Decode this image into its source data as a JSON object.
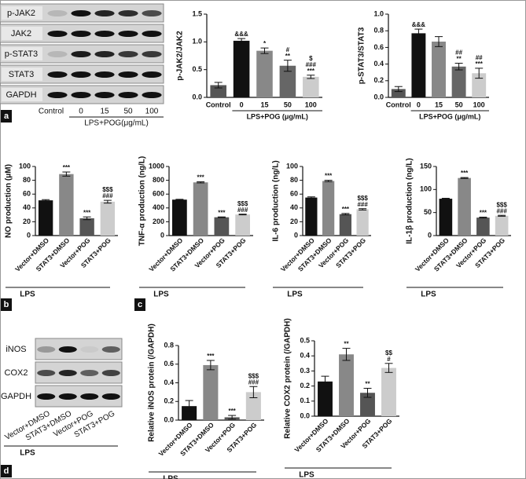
{
  "panels": [
    "a",
    "b",
    "c",
    "d"
  ],
  "blots": [
    {
      "rows": [
        "p-JAK2",
        "JAK2",
        "p-STAT3",
        "STAT3",
        "GAPDH"
      ],
      "lanes": [
        "Control",
        "0",
        "15",
        "50",
        "100"
      ],
      "xlabel": "LPS+POG(μg/mL)"
    },
    {
      "rows": [
        "iNOS",
        "COX2",
        "GAPDH"
      ],
      "lanes": [
        "Vector+DMSO",
        "STAT3+DMSO",
        "Vector+POG",
        "STAT3+POG"
      ],
      "xlabel": "LPS"
    }
  ],
  "chart_data": [
    {
      "type": "bar",
      "ylabel": "p-JAK2/JAK2",
      "xlabel": "LPS+POG (μg/mL)",
      "categories": [
        "Control",
        "0",
        "15",
        "50",
        "100"
      ],
      "values": [
        0.22,
        1.02,
        0.84,
        0.57,
        0.37
      ],
      "errors": [
        0.05,
        0.04,
        0.05,
        0.1,
        0.03
      ],
      "colors": [
        "#555555",
        "#111111",
        "#888888",
        "#666666",
        "#cccccc"
      ],
      "annotations": [
        [],
        [
          "&&&"
        ],
        [
          "*"
        ],
        [
          "#",
          "**"
        ],
        [
          "$",
          "###",
          "***"
        ]
      ],
      "ylim": [
        0,
        1.5
      ],
      "yticks": [
        {
          "value": 0,
          "label": "0.0"
        },
        0.5,
        {
          "value": 1,
          "label": "1.0"
        },
        1.5
      ]
    },
    {
      "type": "bar",
      "ylabel": "p-STAT3/STAT3",
      "xlabel": "LPS+POG (μg/mL)",
      "categories": [
        "Control",
        "0",
        "15",
        "50",
        "100"
      ],
      "values": [
        0.1,
        0.77,
        0.67,
        0.37,
        0.29
      ],
      "errors": [
        0.03,
        0.05,
        0.06,
        0.04,
        0.06
      ],
      "colors": [
        "#555555",
        "#111111",
        "#888888",
        "#666666",
        "#cccccc"
      ],
      "annotations": [
        [],
        [
          "&&&"
        ],
        [],
        [
          "##",
          "**"
        ],
        [
          "##",
          "***"
        ]
      ],
      "ylim": [
        0,
        1
      ],
      "yticks": [
        {
          "value": 0,
          "label": "0.0"
        },
        0.2,
        0.4,
        0.6,
        0.8,
        {
          "value": 1,
          "label": "1.0"
        }
      ]
    },
    {
      "type": "bar",
      "ylabel": "NO production (μM)",
      "xlabel": "LPS",
      "categories": [
        "Vector+DMSO",
        "STAT3+DMSO",
        "Vector+POG",
        "STAT3+POG"
      ],
      "values": [
        51,
        89,
        25,
        49
      ],
      "errors": [
        1,
        3,
        2,
        2
      ],
      "colors": [
        "#111111",
        "#888888",
        "#555555",
        "#cccccc"
      ],
      "annotations": [
        [],
        [
          "***"
        ],
        [
          "***"
        ],
        [
          "$$$",
          "###"
        ]
      ],
      "ylim": [
        0,
        100
      ],
      "yticks": [
        0,
        20,
        40,
        60,
        80,
        100
      ]
    },
    {
      "type": "bar",
      "ylabel": "TNF-α production (ng/L)",
      "xlabel": "LPS",
      "categories": [
        "Vector+DMSO",
        "STAT3+DMSO",
        "Vector+POG",
        "STAT3+POG"
      ],
      "values": [
        520,
        770,
        265,
        305
      ],
      "errors": [
        5,
        8,
        5,
        5
      ],
      "colors": [
        "#111111",
        "#888888",
        "#555555",
        "#cccccc"
      ],
      "annotations": [
        [],
        [
          "***"
        ],
        [
          "***"
        ],
        [
          "$$$",
          "###"
        ]
      ],
      "ylim": [
        0,
        1000
      ],
      "yticks": [
        0,
        200,
        400,
        600,
        800,
        1000
      ]
    },
    {
      "type": "bar",
      "ylabel": "IL-6 production (ng/L)",
      "xlabel": "LPS",
      "categories": [
        "Vector+DMSO",
        "STAT3+DMSO",
        "Vector+POG",
        "STAT3+POG"
      ],
      "values": [
        55,
        79,
        31,
        38
      ],
      "errors": [
        1,
        1,
        1,
        1
      ],
      "colors": [
        "#111111",
        "#888888",
        "#555555",
        "#cccccc"
      ],
      "annotations": [
        [],
        [
          "***"
        ],
        [
          "***"
        ],
        [
          "$$$",
          "###"
        ]
      ],
      "ylim": [
        0,
        100
      ],
      "yticks": [
        0,
        20,
        40,
        60,
        80,
        100
      ]
    },
    {
      "type": "bar",
      "ylabel": "IL-1β production (ng/L)",
      "xlabel": "LPS",
      "categories": [
        "Vector+DMSO",
        "STAT3+DMSO",
        "Vector+POG",
        "STAT3+POG"
      ],
      "values": [
        80,
        125,
        39,
        43
      ],
      "errors": [
        1,
        1,
        1,
        1
      ],
      "colors": [
        "#111111",
        "#888888",
        "#555555",
        "#cccccc"
      ],
      "annotations": [
        [],
        [
          "***"
        ],
        [
          "***"
        ],
        [
          "$$$",
          "###"
        ]
      ],
      "ylim": [
        0,
        150
      ],
      "yticks": [
        0,
        50,
        100,
        150
      ]
    },
    {
      "type": "bar",
      "ylabel": "Relative iNOS protein (/GAPDH)",
      "xlabel": "LPS",
      "categories": [
        "Vector+DMSO",
        "STAT3+DMSO",
        "Vector+POG",
        "STAT3+POG"
      ],
      "values": [
        0.15,
        0.59,
        0.03,
        0.3
      ],
      "errors": [
        0.06,
        0.05,
        0.02,
        0.06
      ],
      "colors": [
        "#111111",
        "#888888",
        "#555555",
        "#cccccc"
      ],
      "annotations": [
        [],
        [
          "***"
        ],
        [
          "***"
        ],
        [
          "$$$",
          "###"
        ]
      ],
      "ylim": [
        0,
        0.8
      ],
      "yticks": [
        {
          "value": 0,
          "label": "0.0"
        },
        0.2,
        0.4,
        0.6,
        0.8
      ]
    },
    {
      "type": "bar",
      "ylabel": "Relative COX2 protein (/GAPDH)",
      "xlabel": "LPS",
      "categories": [
        "Vector+DMSO",
        "STAT3+DMSO",
        "Vector+POG",
        "STAT3+POG"
      ],
      "values": [
        0.23,
        0.41,
        0.155,
        0.32
      ],
      "errors": [
        0.035,
        0.04,
        0.03,
        0.03
      ],
      "colors": [
        "#111111",
        "#888888",
        "#555555",
        "#cccccc"
      ],
      "annotations": [
        [],
        [
          "**"
        ],
        [
          "**"
        ],
        [
          "$$",
          "#"
        ]
      ],
      "ylim": [
        0,
        0.5
      ],
      "yticks": [
        {
          "value": 0,
          "label": "0.0"
        },
        0.1,
        0.2,
        0.3,
        0.4,
        0.5
      ]
    }
  ]
}
